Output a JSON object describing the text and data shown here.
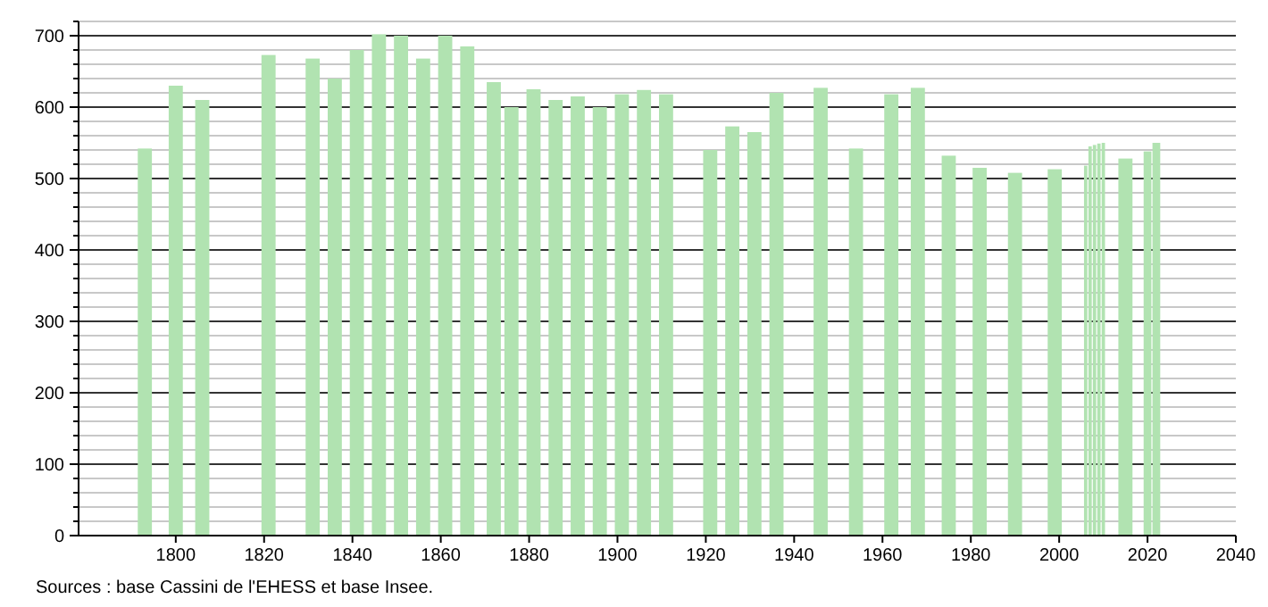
{
  "chart_data": {
    "type": "bar",
    "x": [
      1793,
      1800,
      1806,
      1821,
      1831,
      1836,
      1841,
      1846,
      1851,
      1856,
      1861,
      1866,
      1872,
      1876,
      1881,
      1886,
      1891,
      1896,
      1901,
      1906,
      1911,
      1921,
      1926,
      1931,
      1936,
      1946,
      1954,
      1962,
      1968,
      1975,
      1982,
      1990,
      1999,
      2006,
      2007,
      2008,
      2009,
      2010,
      2015,
      2020,
      2022
    ],
    "values": [
      542,
      630,
      610,
      673,
      668,
      640,
      680,
      702,
      700,
      668,
      700,
      685,
      635,
      600,
      625,
      610,
      615,
      600,
      618,
      624,
      618,
      540,
      573,
      565,
      620,
      627,
      542,
      618,
      627,
      532,
      515,
      508,
      513,
      518,
      545,
      547,
      549,
      550,
      528,
      538,
      550
    ],
    "color": "#b1e3b1",
    "xlim": [
      1778,
      2040
    ],
    "ylim": [
      0,
      720
    ],
    "xticks": [
      1800,
      1820,
      1840,
      1860,
      1880,
      1900,
      1920,
      1940,
      1960,
      1980,
      2000,
      2020,
      2040
    ],
    "yticks": [
      0,
      {
        "value": 20,
        "label": null
      },
      {
        "value": 40,
        "label": null
      },
      {
        "value": 60,
        "label": null
      },
      {
        "value": 80,
        "label": null
      },
      100,
      {
        "value": 120,
        "label": null
      },
      {
        "value": 140,
        "label": null
      },
      {
        "value": 160,
        "label": null
      },
      {
        "value": 180,
        "label": null
      },
      200,
      {
        "value": 220,
        "label": null
      },
      {
        "value": 240,
        "label": null
      },
      {
        "value": 260,
        "label": null
      },
      {
        "value": 280,
        "label": null
      },
      300,
      {
        "value": 320,
        "label": null
      },
      {
        "value": 340,
        "label": null
      },
      {
        "value": 360,
        "label": null
      },
      {
        "value": 380,
        "label": null
      },
      400,
      {
        "value": 420,
        "label": null
      },
      {
        "value": 440,
        "label": null
      },
      {
        "value": 460,
        "label": null
      },
      {
        "value": 480,
        "label": null
      },
      500,
      {
        "value": 520,
        "label": null
      },
      {
        "value": 540,
        "label": null
      },
      {
        "value": 560,
        "label": null
      },
      {
        "value": 580,
        "label": null
      },
      600,
      {
        "value": 620,
        "label": null
      },
      {
        "value": 640,
        "label": null
      },
      {
        "value": 660,
        "label": null
      },
      {
        "value": 680,
        "label": null
      },
      700,
      {
        "value": 720,
        "label": null
      }
    ],
    "grid": "y",
    "annotations": [
      "Sources : base Cassini de l'EHESS et base Insee."
    ]
  }
}
